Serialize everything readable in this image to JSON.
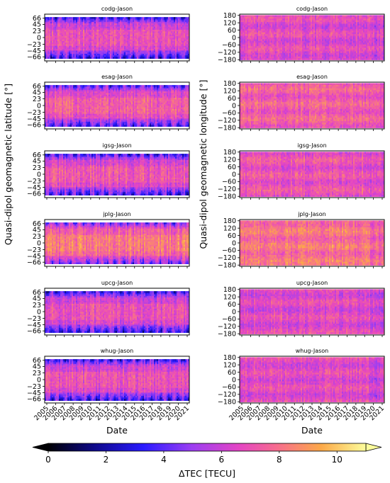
{
  "chart_data": {
    "type": "heatmap",
    "colormap": "plasma-like (black-blue-purple-magenta-orange-yellow)",
    "x_axis": {
      "label": "Date",
      "tick_labels": [
        "2005",
        "2006",
        "2007",
        "2008",
        "2009",
        "2010",
        "2011",
        "2012",
        "2013",
        "2014",
        "2015",
        "2016",
        "2017",
        "2018",
        "2019",
        "2020",
        "2021"
      ]
    },
    "left_column": {
      "ylabel": "Quasi-dipol geomagnetic latitude [°]",
      "ylim": [
        -80,
        80
      ],
      "yticks": [
        66,
        45,
        23,
        0,
        -23,
        -45,
        -66
      ]
    },
    "right_column": {
      "ylabel": "Quasi-dipol geomagnetic longitude [°]",
      "ylim": [
        -190,
        190
      ],
      "yticks": [
        180,
        120,
        60,
        0,
        -60,
        -120,
        -180
      ]
    },
    "panels": [
      {
        "title": "codg-Jason",
        "lat_mean": 6.4,
        "lon_mean": 6.6
      },
      {
        "title": "esag-Jason",
        "lat_mean": 6.8,
        "lon_mean": 7.4
      },
      {
        "title": "igsg-Jason",
        "lat_mean": 6.6,
        "lon_mean": 7.0
      },
      {
        "title": "jplg-Jason",
        "lat_mean": 7.7,
        "lon_mean": 8.0
      },
      {
        "title": "upcg-Jason",
        "lat_mean": 6.3,
        "lon_mean": 6.6
      },
      {
        "title": "whug-Jason",
        "lat_mean": 6.4,
        "lon_mean": 6.6
      }
    ],
    "colorbar": {
      "label": "ΔTEC [TECU]",
      "vmin": 0,
      "vmax": 11,
      "ticks": [
        0,
        2,
        4,
        6,
        8,
        10
      ],
      "extend": "both"
    }
  }
}
